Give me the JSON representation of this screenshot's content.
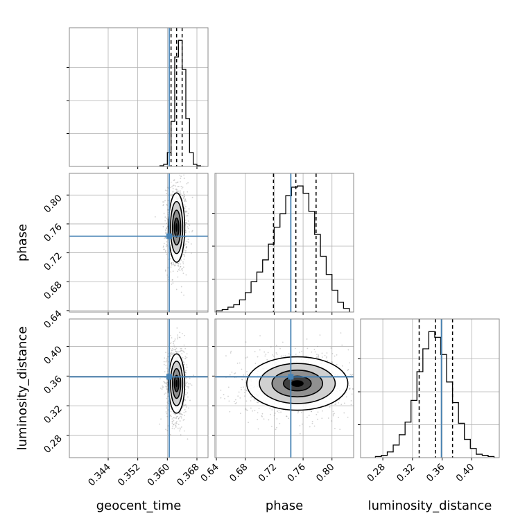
{
  "chart_data": {
    "type": "corner",
    "parameters": [
      {
        "name": "geocent_time",
        "range": [
          0.3335,
          0.371
        ],
        "ticks": [
          "0.344",
          "0.352",
          "0.360",
          "0.368"
        ],
        "tick_values": [
          0.344,
          0.352,
          0.36,
          0.368
        ],
        "truth": 0.3605,
        "quantiles": [
          0.361,
          0.3625,
          0.364
        ]
      },
      {
        "name": "phase",
        "range": [
          0.638,
          0.83
        ],
        "ticks": [
          "0.64",
          "0.68",
          "0.72",
          "0.76",
          "0.80"
        ],
        "tick_values": [
          0.64,
          0.68,
          0.72,
          0.76,
          0.8
        ],
        "truth": 0.743,
        "quantiles": [
          0.719,
          0.75,
          0.778
        ]
      },
      {
        "name": "luminosity_distance",
        "range": [
          0.25,
          0.437
        ],
        "ticks": [
          "0.28",
          "0.32",
          "0.36",
          "0.40"
        ],
        "tick_values": [
          0.28,
          0.32,
          0.36,
          0.4
        ],
        "truth": 0.359,
        "quantiles": [
          0.329,
          0.351,
          0.374
        ]
      }
    ],
    "histograms": [
      {
        "parameter": "geocent_time",
        "bin_edges": [
          0.358,
          0.359,
          0.36,
          0.361,
          0.362,
          0.363,
          0.364,
          0.365,
          0.366,
          0.367,
          0.368,
          0.369,
          0.37
        ],
        "counts": [
          1,
          3,
          20,
          65,
          158,
          182,
          140,
          69,
          20,
          3,
          1,
          0
        ]
      },
      {
        "parameter": "phase",
        "bin_edges": [
          0.64,
          0.648,
          0.656,
          0.664,
          0.672,
          0.68,
          0.688,
          0.696,
          0.704,
          0.712,
          0.72,
          0.728,
          0.736,
          0.744,
          0.752,
          0.76,
          0.768,
          0.776,
          0.784,
          0.792,
          0.8,
          0.808,
          0.816,
          0.824
        ],
        "counts": [
          1,
          2,
          4,
          6,
          10,
          16,
          25,
          33,
          43,
          56,
          70,
          81,
          96,
          103,
          104,
          98,
          83,
          64,
          46,
          31,
          18,
          8,
          3
        ]
      },
      {
        "parameter": "luminosity_distance",
        "bin_edges": [
          0.27,
          0.278,
          0.286,
          0.294,
          0.302,
          0.31,
          0.318,
          0.326,
          0.334,
          0.342,
          0.35,
          0.358,
          0.366,
          0.374,
          0.382,
          0.39,
          0.398,
          0.406,
          0.414,
          0.422,
          0.43
        ],
        "counts": [
          1,
          2,
          5,
          11,
          20,
          31,
          50,
          75,
          95,
          110,
          105,
          90,
          66,
          48,
          30,
          16,
          8,
          3,
          2,
          1
        ]
      }
    ],
    "pair_plots": [
      {
        "x": "geocent_time",
        "y": "phase",
        "center": [
          0.3625,
          0.755
        ],
        "spread": [
          0.0011,
          0.024
        ]
      },
      {
        "x": "geocent_time",
        "y": "luminosity_distance",
        "center": [
          0.3625,
          0.35
        ],
        "spread": [
          0.0011,
          0.02
        ]
      },
      {
        "x": "phase",
        "y": "luminosity_distance",
        "center": [
          0.752,
          0.35
        ],
        "spread": [
          0.035,
          0.018
        ]
      }
    ],
    "truth_color": "#4682b4",
    "quantile_line_style": "dashed",
    "grid": true
  }
}
